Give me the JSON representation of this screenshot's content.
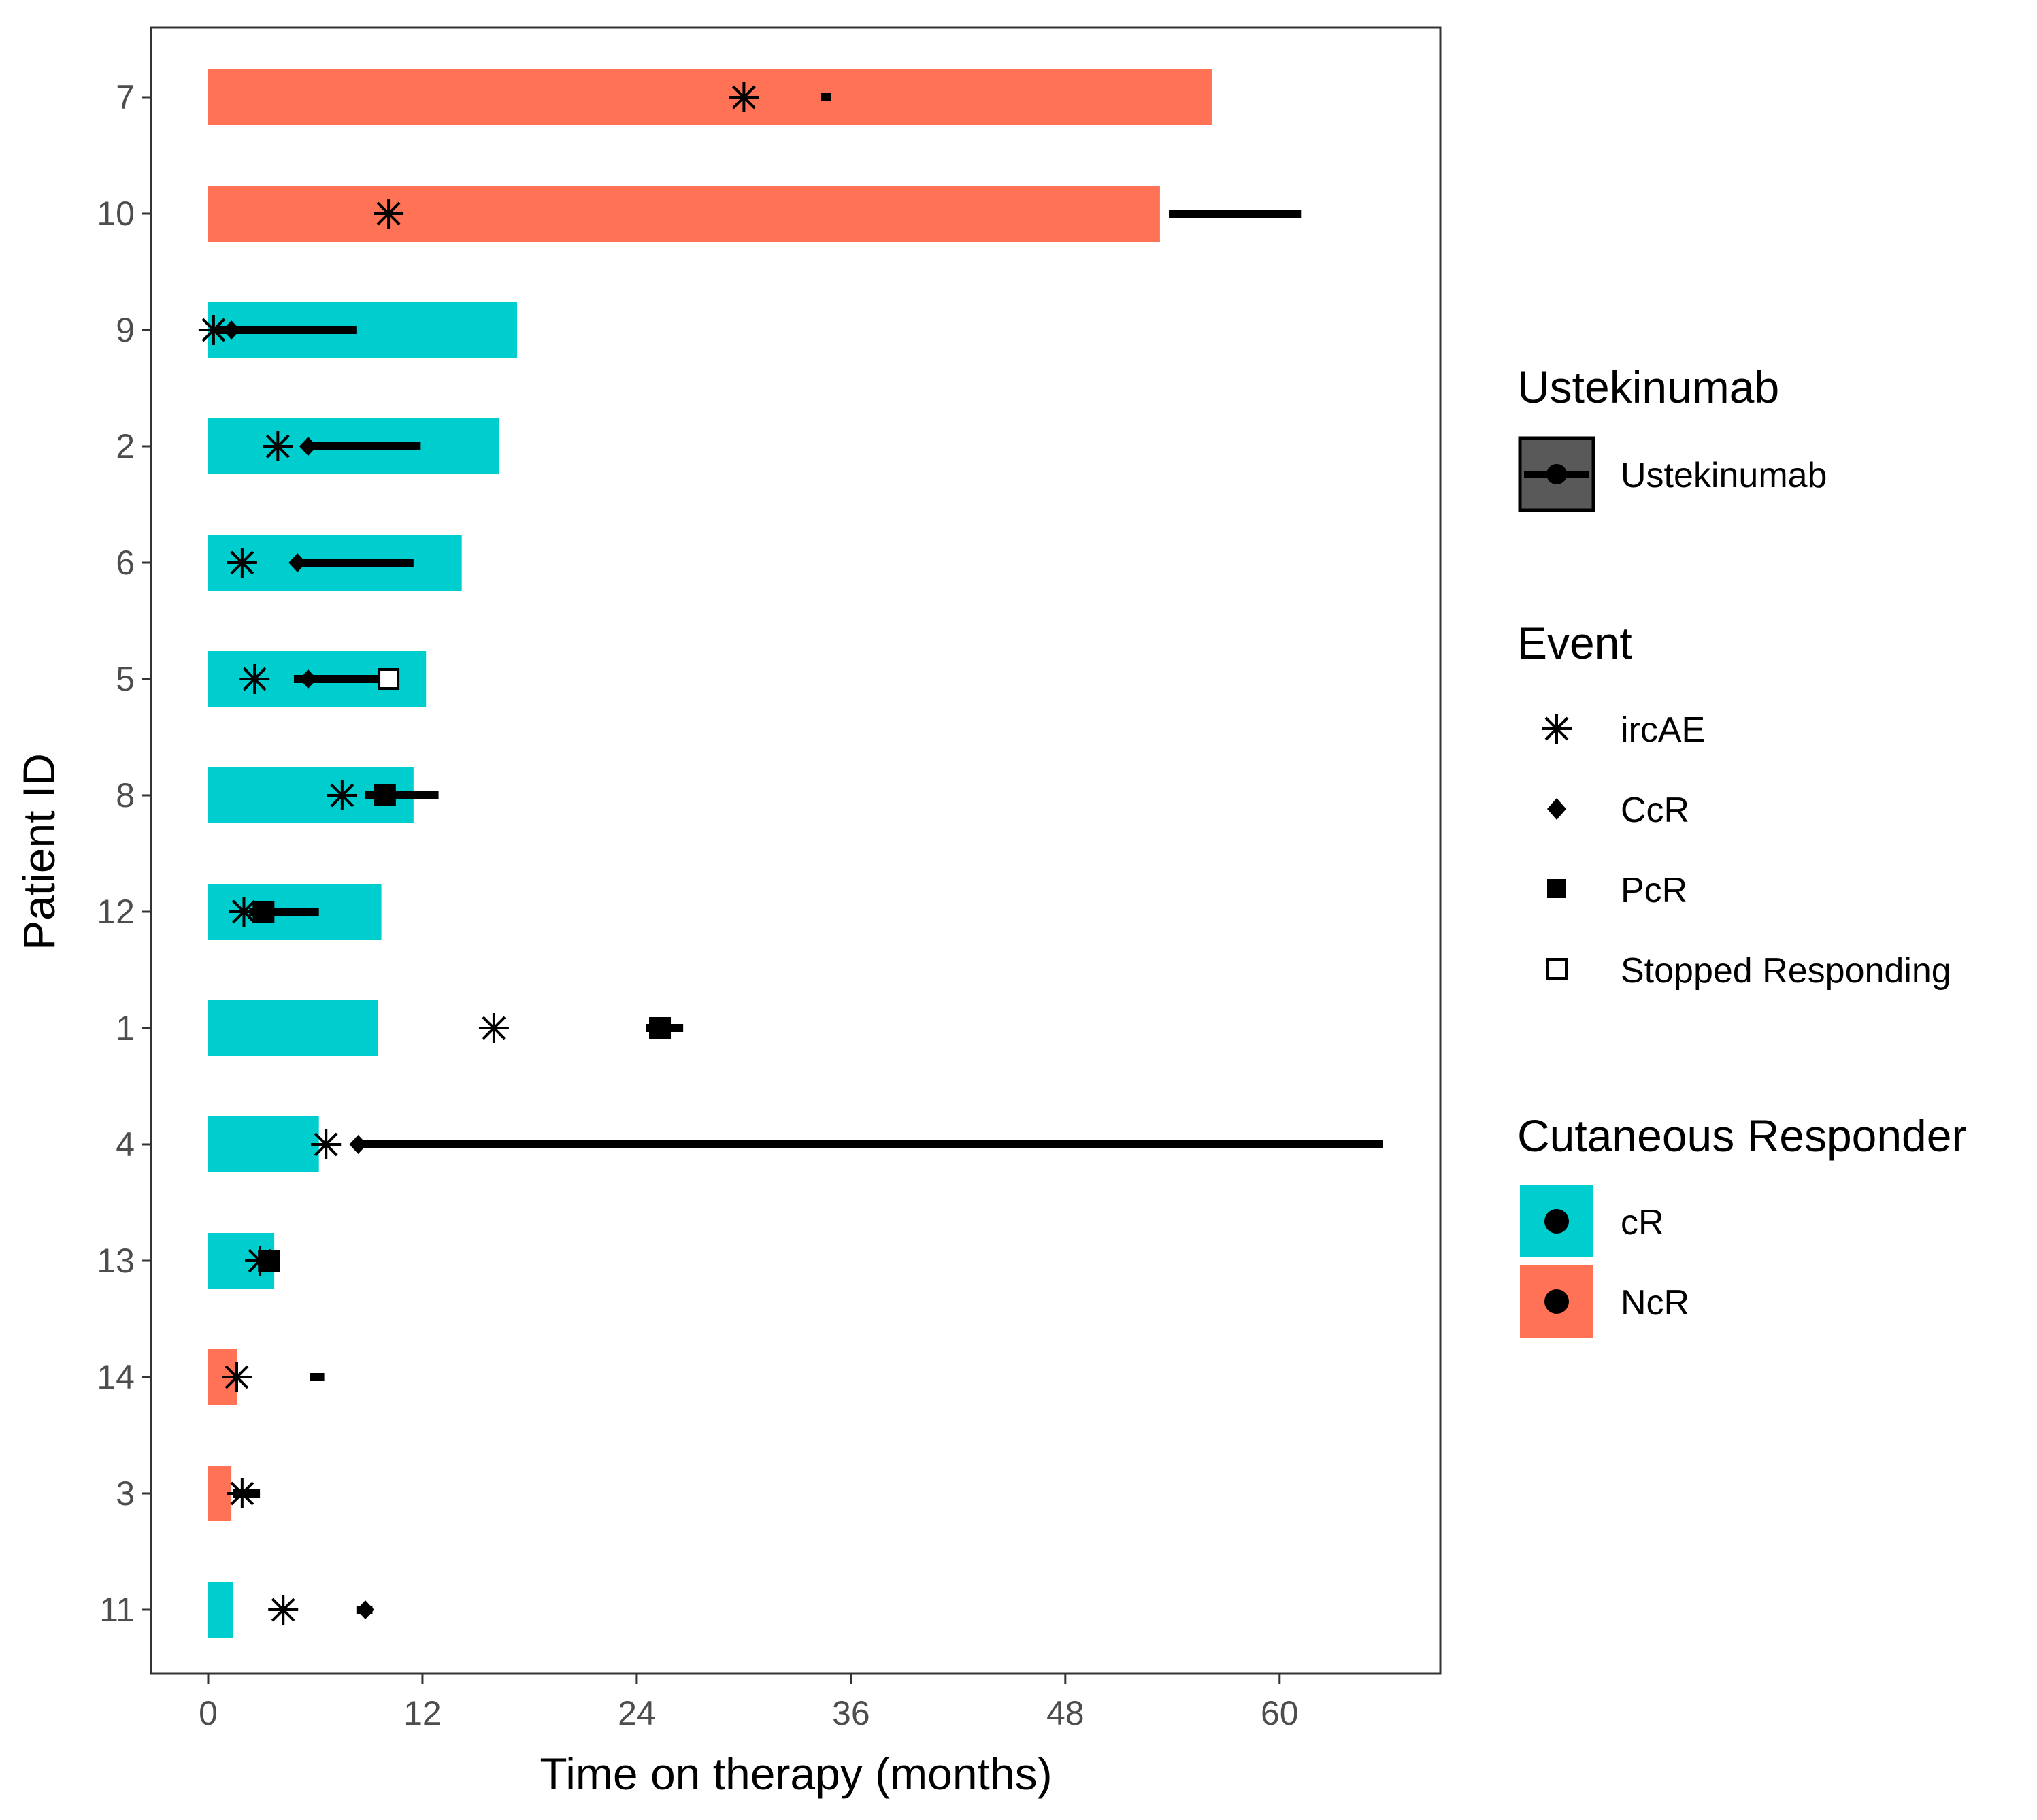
{
  "chart_data": {
    "type": "bar",
    "orientation": "horizontal",
    "xlabel": "Time on therapy (months)",
    "ylabel": "Patient ID",
    "xlim": [
      -3.2,
      69
    ],
    "xticks": [
      "0",
      "12",
      "24",
      "36",
      "48",
      "60"
    ],
    "grid": false,
    "colors": {
      "cR": "#00CDCD",
      "NcR": "#FF7256",
      "marker": "#000000",
      "ustek_fill": "#595959"
    },
    "patients": [
      {
        "id": "7",
        "duration": 56.2,
        "responder": "NcR",
        "ustekinumab": [
          34.3,
          34.9
        ],
        "events": [
          {
            "type": "ircAE",
            "time": 30.0
          }
        ]
      },
      {
        "id": "10",
        "duration": 53.3,
        "responder": "NcR",
        "ustekinumab": [
          53.8,
          61.2
        ],
        "events": [
          {
            "type": "ircAE",
            "time": 10.1
          }
        ]
      },
      {
        "id": "9",
        "duration": 17.3,
        "responder": "cR",
        "ustekinumab": [
          0.5,
          8.3
        ],
        "events": [
          {
            "type": "ircAE",
            "time": 0.3
          },
          {
            "type": "CcR",
            "time": 1.3
          }
        ]
      },
      {
        "id": "2",
        "duration": 16.3,
        "responder": "cR",
        "ustekinumab": [
          5.6,
          11.9
        ],
        "events": [
          {
            "type": "ircAE",
            "time": 3.9
          },
          {
            "type": "CcR",
            "time": 5.6
          }
        ]
      },
      {
        "id": "6",
        "duration": 14.2,
        "responder": "cR",
        "ustekinumab": [
          5.0,
          11.5
        ],
        "events": [
          {
            "type": "ircAE",
            "time": 1.9
          },
          {
            "type": "CcR",
            "time": 5.0
          }
        ]
      },
      {
        "id": "5",
        "duration": 12.2,
        "responder": "cR",
        "ustekinumab": [
          4.8,
          10.1
        ],
        "events": [
          {
            "type": "ircAE",
            "time": 2.6
          },
          {
            "type": "CcR",
            "time": 5.6
          },
          {
            "type": "Stopped Responding",
            "time": 10.1
          }
        ]
      },
      {
        "id": "8",
        "duration": 11.5,
        "responder": "cR",
        "ustekinumab": [
          8.8,
          12.9
        ],
        "events": [
          {
            "type": "ircAE",
            "time": 7.5
          },
          {
            "type": "PcR",
            "time": 9.9
          }
        ]
      },
      {
        "id": "12",
        "duration": 9.7,
        "responder": "cR",
        "ustekinumab": [
          2.3,
          6.2
        ],
        "events": [
          {
            "type": "ircAE",
            "time": 2.0
          },
          {
            "type": "PcR",
            "time": 3.1
          }
        ]
      },
      {
        "id": "1",
        "duration": 9.5,
        "responder": "cR",
        "ustekinumab": [
          24.5,
          26.6
        ],
        "events": [
          {
            "type": "ircAE",
            "time": 16.0
          },
          {
            "type": "PcR",
            "time": 25.3
          }
        ]
      },
      {
        "id": "4",
        "duration": 6.2,
        "responder": "cR",
        "ustekinumab": [
          8.2,
          65.8
        ],
        "events": [
          {
            "type": "ircAE",
            "time": 6.6
          },
          {
            "type": "CcR",
            "time": 8.4
          }
        ]
      },
      {
        "id": "13",
        "duration": 3.7,
        "responder": "cR",
        "ustekinumab": [
          2.9,
          3.8
        ],
        "events": [
          {
            "type": "ircAE",
            "time": 2.9
          },
          {
            "type": "PcR",
            "time": 3.4
          }
        ]
      },
      {
        "id": "14",
        "duration": 1.6,
        "responder": "NcR",
        "ustekinumab": [
          5.7,
          6.5
        ],
        "events": [
          {
            "type": "ircAE",
            "time": 1.6
          }
        ]
      },
      {
        "id": "3",
        "duration": 1.3,
        "responder": "NcR",
        "ustekinumab": [
          1.4,
          2.9
        ],
        "events": [
          {
            "type": "ircAE",
            "time": 1.9
          }
        ]
      },
      {
        "id": "11",
        "duration": 1.4,
        "responder": "cR",
        "ustekinumab": [
          8.3,
          9.2
        ],
        "events": [
          {
            "type": "ircAE",
            "time": 4.2
          },
          {
            "type": "CcR",
            "time": 8.8
          }
        ]
      }
    ],
    "legend": {
      "placement": "right",
      "ustekinumab": {
        "title": "Ustekinumab",
        "label": "Ustekinumab"
      },
      "event": {
        "title": "Event",
        "items": [
          "ircAE",
          "CcR",
          "PcR",
          "Stopped Responding"
        ]
      },
      "responder": {
        "title": "Cutaneous Responder",
        "items": [
          "cR",
          "NcR"
        ]
      }
    }
  }
}
